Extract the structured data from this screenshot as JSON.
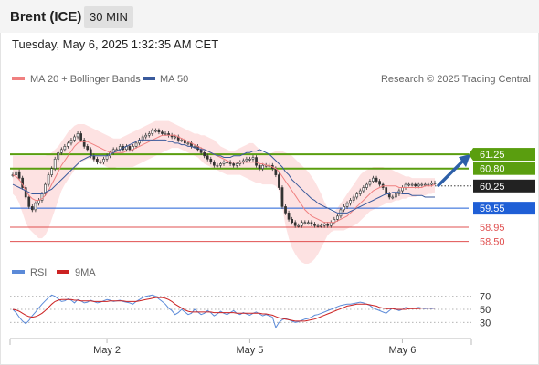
{
  "header": {
    "instrument": "Brent (ICE)",
    "timeframe": "30 MIN"
  },
  "timestamp": "Tuesday, May 6, 2025 1:32:35 AM CET",
  "legend": {
    "ma20": "MA 20 + Bollinger Bands",
    "ma50": "MA 50",
    "credit": "Research © 2025 Trading Central"
  },
  "rsi_legend": {
    "rsi": "RSI",
    "ma": "9MA"
  },
  "colors": {
    "ma20": "#f08080",
    "ma50": "#3a5a9c",
    "band_fill": "#fde2e2",
    "green": "#5a9e0f",
    "blue": "#1f5fd6",
    "red_level": "#e05050",
    "current": "#222222",
    "arrow": "#2d5fa8",
    "rsi": "#5b8ad8",
    "rsi_ma": "#cc2222"
  },
  "chart_data": [
    {
      "type": "candlestick",
      "title": "",
      "x_tick_labels": [
        "May 2",
        "May 5",
        "May 6"
      ],
      "legend": [
        "MA 20 + Bollinger Bands",
        "MA 50"
      ],
      "ylim": [
        58.0,
        62.0
      ],
      "closes": [
        60.6,
        60.7,
        60.5,
        60.2,
        59.9,
        59.6,
        59.5,
        59.7,
        59.8,
        60.0,
        60.3,
        60.6,
        60.8,
        61.1,
        61.3,
        61.4,
        61.5,
        61.6,
        61.7,
        61.8,
        61.9,
        61.7,
        61.5,
        61.4,
        61.2,
        61.1,
        61.0,
        61.0,
        61.1,
        61.2,
        61.3,
        61.4,
        61.4,
        61.5,
        61.4,
        61.5,
        61.4,
        61.5,
        61.6,
        61.7,
        61.8,
        61.85,
        61.9,
        62.0,
        62.0,
        61.95,
        61.9,
        61.9,
        61.85,
        61.8,
        61.8,
        61.7,
        61.7,
        61.6,
        61.6,
        61.5,
        61.5,
        61.4,
        61.3,
        61.2,
        61.1,
        61.0,
        60.9,
        60.9,
        60.95,
        61.0,
        61.0,
        60.95,
        60.9,
        60.95,
        61.0,
        61.05,
        61.1,
        61.1,
        61.15,
        60.9,
        60.8,
        60.9,
        60.9,
        60.9,
        60.8,
        60.6,
        60.2,
        59.6,
        59.4,
        59.2,
        59.1,
        59.0,
        59.0,
        59.1,
        59.1,
        59.1,
        59.05,
        59.0,
        59.0,
        59.0,
        59.05,
        59.0,
        59.1,
        59.2,
        59.3,
        59.5,
        59.6,
        59.7,
        59.8,
        59.9,
        60.0,
        60.1,
        60.2,
        60.3,
        60.4,
        60.5,
        60.4,
        60.3,
        60.2,
        60.0,
        59.9,
        59.9,
        60.0,
        60.1,
        60.2,
        60.3,
        60.3,
        60.3,
        60.25,
        60.3,
        60.3,
        60.3,
        60.3,
        60.35,
        60.35
      ],
      "ma20": [
        60.6,
        60.55,
        60.45,
        60.3,
        60.1,
        59.95,
        59.85,
        59.8,
        59.8,
        59.85,
        59.95,
        60.1,
        60.3,
        60.5,
        60.7,
        60.9,
        61.05,
        61.2,
        61.35,
        61.5,
        61.6,
        61.65,
        61.65,
        61.65,
        61.6,
        61.55,
        61.5,
        61.45,
        61.4,
        61.35,
        61.3,
        61.3,
        61.3,
        61.3,
        61.3,
        61.35,
        61.35,
        61.4,
        61.45,
        61.5,
        61.55,
        61.6,
        61.65,
        61.7,
        61.75,
        61.8,
        61.85,
        61.85,
        61.85,
        61.85,
        61.85,
        61.8,
        61.75,
        61.7,
        61.65,
        61.6,
        61.55,
        61.5,
        61.45,
        61.4,
        61.35,
        61.3,
        61.25,
        61.2,
        61.15,
        61.1,
        61.05,
        61.0,
        61.0,
        61.0,
        61.0,
        61.0,
        61.0,
        61.0,
        61.0,
        61.0,
        60.95,
        60.95,
        60.9,
        60.9,
        60.85,
        60.8,
        60.7,
        60.55,
        60.4,
        60.25,
        60.1,
        59.95,
        59.8,
        59.65,
        59.5,
        59.4,
        59.3,
        59.25,
        59.2,
        59.15,
        59.1,
        59.1,
        59.1,
        59.1,
        59.15,
        59.2,
        59.25,
        59.3,
        59.4,
        59.5,
        59.6,
        59.7,
        59.8,
        59.9,
        60.0,
        60.1,
        60.15,
        60.2,
        60.25,
        60.25,
        60.25,
        60.25,
        60.25,
        60.2,
        60.2,
        60.2,
        60.2,
        60.2,
        60.2,
        60.2,
        60.2,
        60.25,
        60.25,
        60.25,
        60.3
      ],
      "bb_upper": [
        61.2,
        61.2,
        61.2,
        61.2,
        61.2,
        61.2,
        61.2,
        61.2,
        61.2,
        61.2,
        61.2,
        61.25,
        61.3,
        61.4,
        61.5,
        61.65,
        61.8,
        61.95,
        62.05,
        62.15,
        62.2,
        62.2,
        62.2,
        62.15,
        62.1,
        62.05,
        62.0,
        61.95,
        61.9,
        61.85,
        61.8,
        61.75,
        61.75,
        61.75,
        61.8,
        61.85,
        61.9,
        61.95,
        62.0,
        62.05,
        62.1,
        62.15,
        62.2,
        62.25,
        62.3,
        62.3,
        62.3,
        62.3,
        62.3,
        62.25,
        62.2,
        62.15,
        62.1,
        62.05,
        62.0,
        61.95,
        61.9,
        61.9,
        61.85,
        61.85,
        61.8,
        61.75,
        61.7,
        61.6,
        61.5,
        61.45,
        61.4,
        61.35,
        61.35,
        61.4,
        61.45,
        61.5,
        61.55,
        61.6,
        61.6,
        61.5,
        61.4,
        61.3,
        61.25,
        61.25,
        61.3,
        61.35,
        61.35,
        61.35,
        61.3,
        61.25,
        61.2,
        61.1,
        61.0,
        60.9,
        60.8,
        60.7,
        60.55,
        60.4,
        60.2,
        60.0,
        59.75,
        59.55,
        59.45,
        59.45,
        59.55,
        59.7,
        59.85,
        60.0,
        60.15,
        60.3,
        60.45,
        60.6,
        60.7,
        60.75,
        60.8,
        60.85,
        60.85,
        60.85,
        60.85,
        60.8,
        60.8,
        60.75,
        60.7,
        60.65,
        60.6,
        60.55,
        60.55,
        60.5,
        60.5,
        60.5,
        60.5,
        60.5,
        60.5,
        60.5,
        60.5
      ],
      "bb_lower": [
        60.0,
        59.9,
        59.7,
        59.4,
        59.1,
        58.9,
        58.8,
        58.7,
        58.6,
        58.6,
        58.7,
        58.9,
        59.2,
        59.5,
        59.8,
        60.1,
        60.3,
        60.45,
        60.6,
        60.75,
        60.9,
        61.0,
        61.05,
        61.1,
        61.1,
        61.05,
        61.0,
        60.95,
        60.9,
        60.85,
        60.8,
        60.8,
        60.85,
        60.85,
        60.85,
        60.85,
        60.85,
        60.85,
        60.9,
        60.95,
        61.0,
        61.05,
        61.1,
        61.15,
        61.2,
        61.25,
        61.3,
        61.35,
        61.4,
        61.45,
        61.45,
        61.45,
        61.4,
        61.35,
        61.3,
        61.25,
        61.2,
        61.15,
        61.05,
        60.95,
        60.9,
        60.85,
        60.8,
        60.75,
        60.7,
        60.65,
        60.6,
        60.6,
        60.6,
        60.6,
        60.6,
        60.55,
        60.5,
        60.45,
        60.4,
        60.35,
        60.35,
        60.3,
        60.3,
        60.3,
        60.3,
        60.25,
        60.1,
        59.6,
        59.0,
        58.6,
        58.3,
        58.1,
        57.95,
        57.85,
        57.8,
        57.8,
        57.85,
        57.95,
        58.1,
        58.3,
        58.5,
        58.7,
        58.8,
        58.85,
        58.85,
        58.85,
        58.85,
        58.9,
        58.95,
        59.0,
        59.05,
        59.15,
        59.25,
        59.35,
        59.45,
        59.5,
        59.55,
        59.6,
        59.65,
        59.7,
        59.7,
        59.75,
        59.8,
        59.8,
        59.85,
        59.85,
        59.9,
        59.9,
        59.9,
        59.95,
        59.95,
        59.95,
        60.0,
        60.0,
        60.05
      ],
      "ma50": [
        60.3,
        60.25,
        60.2,
        60.15,
        60.1,
        60.05,
        60.0,
        60.0,
        60.0,
        60.0,
        60.05,
        60.1,
        60.15,
        60.25,
        60.35,
        60.45,
        60.55,
        60.65,
        60.75,
        60.85,
        60.95,
        61.05,
        61.1,
        61.15,
        61.2,
        61.2,
        61.2,
        61.2,
        61.2,
        61.2,
        61.25,
        61.3,
        61.35,
        61.4,
        61.45,
        61.5,
        61.55,
        61.6,
        61.65,
        61.7,
        61.7,
        61.7,
        61.7,
        61.7,
        61.7,
        61.7,
        61.7,
        61.7,
        61.65,
        61.65,
        61.6,
        61.6,
        61.55,
        61.55,
        61.5,
        61.5,
        61.45,
        61.45,
        61.4,
        61.4,
        61.35,
        61.3,
        61.25,
        61.2,
        61.2,
        61.15,
        61.15,
        61.15,
        61.2,
        61.2,
        61.2,
        61.25,
        61.3,
        61.3,
        61.35,
        61.35,
        61.4,
        61.35,
        61.3,
        61.25,
        61.15,
        61.05,
        60.95,
        60.85,
        60.7,
        60.6,
        60.45,
        60.35,
        60.25,
        60.15,
        60.05,
        59.95,
        59.85,
        59.8,
        59.7,
        59.65,
        59.6,
        59.55,
        59.5,
        59.45,
        59.4,
        59.4,
        59.4,
        59.4,
        59.45,
        59.5,
        59.55,
        59.6,
        59.65,
        59.7,
        59.75,
        59.8,
        59.85,
        59.9,
        59.95,
        60.0,
        60.0,
        60.05,
        60.05,
        60.05,
        60.0,
        60.0,
        60.0,
        59.95,
        59.95,
        59.95,
        59.95,
        59.9,
        59.9,
        59.9,
        59.9
      ],
      "levels": [
        {
          "value": 61.25,
          "label": "61.25",
          "kind": "resistance"
        },
        {
          "value": 60.8,
          "label": "60.80",
          "kind": "resistance"
        },
        {
          "value": 60.25,
          "label": "60.25",
          "kind": "current"
        },
        {
          "value": 59.55,
          "label": "59.55",
          "kind": "pivot"
        },
        {
          "value": 58.95,
          "label": "58.95",
          "kind": "support"
        },
        {
          "value": 58.5,
          "label": "58.50",
          "kind": "support"
        }
      ],
      "projection": {
        "from": 60.3,
        "to": 61.25
      },
      "annotations": [
        "upward arrow toward 61.25"
      ]
    },
    {
      "type": "line",
      "title": "",
      "series": [
        {
          "name": "RSI",
          "values": [
            50,
            45,
            38,
            32,
            28,
            33,
            40,
            46,
            52,
            58,
            63,
            68,
            72,
            70,
            66,
            62,
            63,
            66,
            64,
            60,
            65,
            63,
            60,
            61,
            64,
            62,
            60,
            61,
            63,
            65,
            64,
            62,
            63,
            64,
            62,
            61,
            60,
            58,
            62,
            65,
            68,
            70,
            71,
            72,
            70,
            66,
            62,
            58,
            52,
            48,
            42,
            45,
            50,
            46,
            42,
            44,
            50,
            46,
            42,
            44,
            48,
            45,
            40,
            43,
            47,
            44,
            42,
            45,
            48,
            44,
            42,
            45,
            43,
            41,
            44,
            46,
            43,
            40,
            42,
            40,
            38,
            22,
            30,
            34,
            36,
            34,
            32,
            30,
            31,
            33,
            35,
            36,
            38,
            41,
            42,
            44,
            46,
            48,
            50,
            52,
            54,
            56,
            57,
            58,
            58,
            59,
            60,
            61,
            60,
            58,
            56,
            52,
            50,
            48,
            46,
            44,
            48,
            52,
            50,
            48,
            50,
            53,
            52,
            51,
            52,
            53,
            52,
            51,
            52,
            51,
            52
          ]
        },
        {
          "name": "9MA",
          "values": [
            50,
            49,
            47,
            44,
            41,
            39,
            38,
            39,
            41,
            44,
            48,
            53,
            58,
            62,
            64,
            65,
            65,
            65,
            65,
            64,
            64,
            63,
            63,
            63,
            63,
            62,
            62,
            62,
            62,
            62,
            63,
            63,
            63,
            63,
            63,
            62,
            62,
            62,
            62,
            63,
            64,
            65,
            66,
            67,
            68,
            68,
            68,
            67,
            65,
            62,
            58,
            55,
            52,
            49,
            47,
            46,
            46,
            46,
            46,
            46,
            46,
            46,
            45,
            45,
            45,
            45,
            45,
            45,
            45,
            44,
            44,
            44,
            44,
            44,
            44,
            44,
            44,
            43,
            43,
            42,
            41,
            39,
            37,
            36,
            35,
            34,
            33,
            32,
            32,
            32,
            32,
            33,
            34,
            35,
            37,
            39,
            41,
            43,
            45,
            47,
            49,
            51,
            53,
            55,
            56,
            57,
            58,
            58,
            58,
            58,
            57,
            56,
            55,
            53,
            52,
            51,
            51,
            51,
            50,
            50,
            50,
            50,
            51,
            51,
            51,
            51,
            52,
            52,
            52,
            52,
            52
          ]
        }
      ],
      "y_tick_labels": [
        "70",
        "50",
        "30"
      ],
      "levels": [
        70,
        50,
        30
      ],
      "ylim": [
        15,
        85
      ]
    }
  ]
}
